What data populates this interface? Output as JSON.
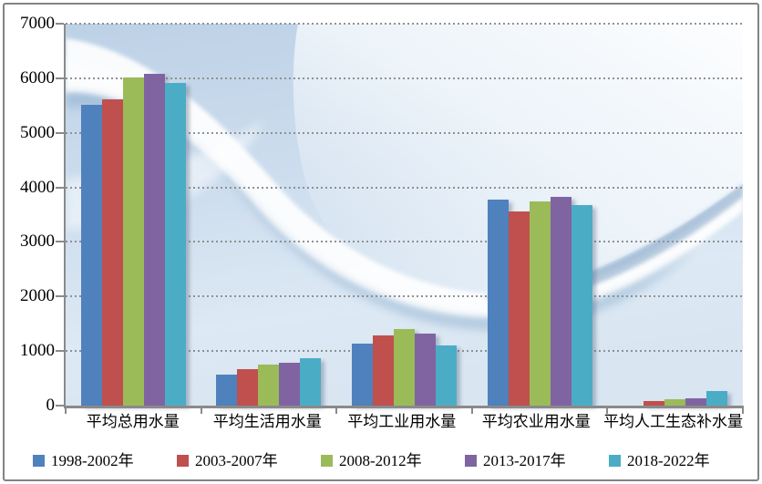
{
  "window": {
    "background_color": "#ffffff",
    "border_color": "#838383"
  },
  "chart_data": {
    "type": "bar",
    "title": "",
    "xlabel": "",
    "ylabel": "",
    "categories": [
      "平均总用水量",
      "平均生活用水量",
      "平均工业用水量",
      "平均农业用水量",
      "平均人工生态补水量"
    ],
    "series": [
      {
        "name": "1998-2002年",
        "color": "#4F81BD",
        "values": [
          5520,
          570,
          1140,
          3780,
          0
        ]
      },
      {
        "name": "2003-2007年",
        "color": "#C0504D",
        "values": [
          5610,
          670,
          1280,
          3560,
          90
        ]
      },
      {
        "name": "2008-2012年",
        "color": "#9BBB59",
        "values": [
          6020,
          750,
          1400,
          3740,
          110
        ]
      },
      {
        "name": "2013-2017年",
        "color": "#8064A2",
        "values": [
          6090,
          790,
          1320,
          3830,
          140
        ]
      },
      {
        "name": "2018-2022年",
        "color": "#4BACC6",
        "values": [
          5920,
          870,
          1110,
          3670,
          270
        ]
      }
    ],
    "ylim": [
      0,
      7000
    ],
    "ytick_interval": 1000,
    "ytick_labels": [
      "7000",
      "6000",
      "5000",
      "4000",
      "3000",
      "2000",
      "1000",
      "0"
    ],
    "grid": {
      "orientation": "horizontal",
      "style": "dotted",
      "color": "#8f9193"
    },
    "axis_color": "#8a8a8a",
    "legend_position": "bottom",
    "plot_background": "decorative blue wave image"
  }
}
